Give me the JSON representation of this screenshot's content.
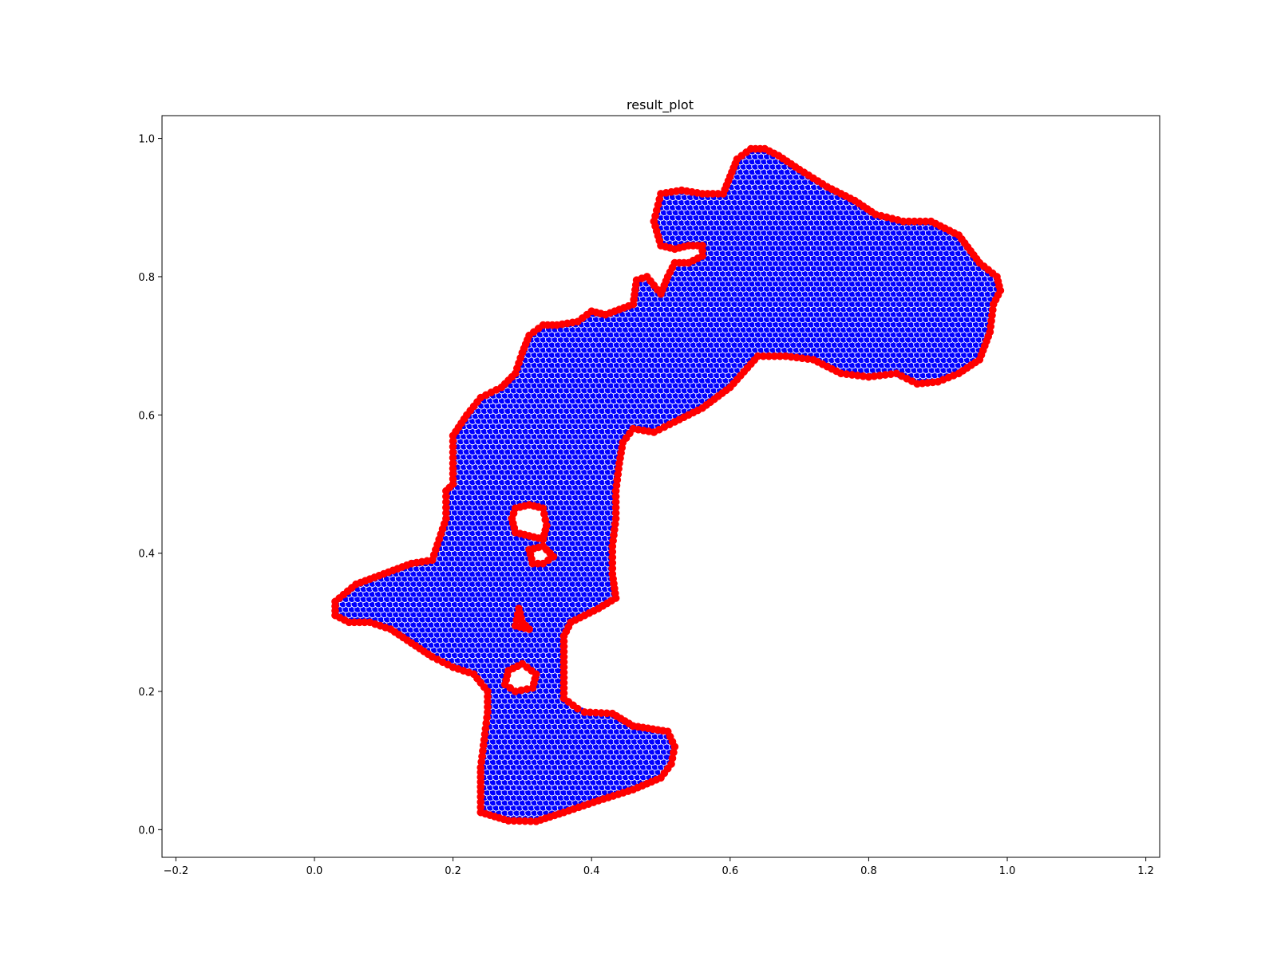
{
  "chart_data": {
    "type": "scatter",
    "title": "result_plot",
    "xlabel": "",
    "ylabel": "",
    "xlim": [
      -0.22,
      1.22
    ],
    "ylim": [
      -0.04,
      1.033
    ],
    "grid": false,
    "x_ticks": [
      "-0.2",
      "0.0",
      "0.2",
      "0.4",
      "0.6",
      "0.8",
      "1.0",
      "1.2"
    ],
    "y_ticks": [
      "0.0",
      "0.2",
      "0.4",
      "0.6",
      "0.8",
      "1.0"
    ],
    "colors": {
      "interior": "#0000ff",
      "boundary": "#ff0000",
      "marker_edge": "#ffffff"
    },
    "series": [
      {
        "role": "boundary",
        "color": "#ff0000",
        "closed": true,
        "points": [
          [
            0.24,
            0.025
          ],
          [
            0.28,
            0.013
          ],
          [
            0.32,
            0.012
          ],
          [
            0.36,
            0.025
          ],
          [
            0.41,
            0.042
          ],
          [
            0.46,
            0.058
          ],
          [
            0.5,
            0.075
          ],
          [
            0.515,
            0.095
          ],
          [
            0.52,
            0.12
          ],
          [
            0.51,
            0.142
          ],
          [
            0.46,
            0.15
          ],
          [
            0.43,
            0.168
          ],
          [
            0.39,
            0.17
          ],
          [
            0.38,
            0.175
          ],
          [
            0.36,
            0.19
          ],
          [
            0.36,
            0.22
          ],
          [
            0.36,
            0.25
          ],
          [
            0.36,
            0.28
          ],
          [
            0.37,
            0.3
          ],
          [
            0.41,
            0.32
          ],
          [
            0.435,
            0.335
          ],
          [
            0.43,
            0.37
          ],
          [
            0.43,
            0.41
          ],
          [
            0.435,
            0.45
          ],
          [
            0.435,
            0.49
          ],
          [
            0.44,
            0.53
          ],
          [
            0.445,
            0.56
          ],
          [
            0.46,
            0.58
          ],
          [
            0.49,
            0.575
          ],
          [
            0.52,
            0.59
          ],
          [
            0.56,
            0.61
          ],
          [
            0.6,
            0.64
          ],
          [
            0.64,
            0.685
          ],
          [
            0.68,
            0.685
          ],
          [
            0.72,
            0.68
          ],
          [
            0.76,
            0.66
          ],
          [
            0.8,
            0.655
          ],
          [
            0.84,
            0.66
          ],
          [
            0.87,
            0.645
          ],
          [
            0.9,
            0.648
          ],
          [
            0.93,
            0.66
          ],
          [
            0.96,
            0.68
          ],
          [
            0.975,
            0.72
          ],
          [
            0.98,
            0.76
          ],
          [
            0.99,
            0.78
          ],
          [
            0.985,
            0.8
          ],
          [
            0.96,
            0.82
          ],
          [
            0.93,
            0.86
          ],
          [
            0.89,
            0.88
          ],
          [
            0.85,
            0.88
          ],
          [
            0.81,
            0.89
          ],
          [
            0.78,
            0.91
          ],
          [
            0.74,
            0.93
          ],
          [
            0.7,
            0.955
          ],
          [
            0.67,
            0.975
          ],
          [
            0.65,
            0.985
          ],
          [
            0.63,
            0.985
          ],
          [
            0.61,
            0.97
          ],
          [
            0.6,
            0.945
          ],
          [
            0.59,
            0.92
          ],
          [
            0.56,
            0.92
          ],
          [
            0.53,
            0.925
          ],
          [
            0.5,
            0.92
          ],
          [
            0.49,
            0.88
          ],
          [
            0.5,
            0.845
          ],
          [
            0.52,
            0.84
          ],
          [
            0.54,
            0.845
          ],
          [
            0.56,
            0.845
          ],
          [
            0.56,
            0.83
          ],
          [
            0.54,
            0.82
          ],
          [
            0.52,
            0.82
          ],
          [
            0.51,
            0.8
          ],
          [
            0.5,
            0.775
          ],
          [
            0.48,
            0.8
          ],
          [
            0.465,
            0.795
          ],
          [
            0.46,
            0.76
          ],
          [
            0.42,
            0.745
          ],
          [
            0.4,
            0.75
          ],
          [
            0.38,
            0.735
          ],
          [
            0.35,
            0.73
          ],
          [
            0.33,
            0.73
          ],
          [
            0.31,
            0.715
          ],
          [
            0.3,
            0.69
          ],
          [
            0.29,
            0.66
          ],
          [
            0.27,
            0.64
          ],
          [
            0.24,
            0.625
          ],
          [
            0.22,
            0.6
          ],
          [
            0.2,
            0.57
          ],
          [
            0.2,
            0.53
          ],
          [
            0.2,
            0.5
          ],
          [
            0.19,
            0.49
          ],
          [
            0.19,
            0.45
          ],
          [
            0.18,
            0.42
          ],
          [
            0.17,
            0.39
          ],
          [
            0.14,
            0.385
          ],
          [
            0.1,
            0.37
          ],
          [
            0.06,
            0.355
          ],
          [
            0.03,
            0.33
          ],
          [
            0.03,
            0.31
          ],
          [
            0.05,
            0.3
          ],
          [
            0.08,
            0.3
          ],
          [
            0.11,
            0.29
          ],
          [
            0.14,
            0.27
          ],
          [
            0.17,
            0.25
          ],
          [
            0.2,
            0.235
          ],
          [
            0.23,
            0.225
          ],
          [
            0.25,
            0.2
          ],
          [
            0.25,
            0.17
          ],
          [
            0.245,
            0.13
          ],
          [
            0.24,
            0.09
          ],
          [
            0.24,
            0.055
          ]
        ]
      },
      {
        "role": "hole-boundary",
        "color": "#ff0000",
        "closed": true,
        "points": [
          [
            0.29,
            0.465
          ],
          [
            0.31,
            0.47
          ],
          [
            0.33,
            0.465
          ],
          [
            0.335,
            0.44
          ],
          [
            0.33,
            0.42
          ],
          [
            0.31,
            0.425
          ],
          [
            0.29,
            0.43
          ],
          [
            0.285,
            0.45
          ]
        ]
      },
      {
        "role": "hole-boundary",
        "color": "#ff0000",
        "closed": true,
        "points": [
          [
            0.31,
            0.405
          ],
          [
            0.33,
            0.41
          ],
          [
            0.345,
            0.395
          ],
          [
            0.33,
            0.385
          ],
          [
            0.315,
            0.385
          ]
        ]
      },
      {
        "role": "hole-boundary",
        "color": "#ff0000",
        "closed": true,
        "points": [
          [
            0.295,
            0.32
          ],
          [
            0.3,
            0.3
          ],
          [
            0.31,
            0.29
          ],
          [
            0.29,
            0.295
          ]
        ]
      },
      {
        "role": "hole-boundary",
        "color": "#ff0000",
        "closed": true,
        "points": [
          [
            0.28,
            0.23
          ],
          [
            0.3,
            0.24
          ],
          [
            0.32,
            0.225
          ],
          [
            0.315,
            0.205
          ],
          [
            0.29,
            0.2
          ],
          [
            0.275,
            0.21
          ]
        ]
      },
      {
        "role": "interior",
        "color": "#0000ff",
        "fill": "interior-lattice",
        "lattice_spacing": 0.0085
      }
    ]
  }
}
